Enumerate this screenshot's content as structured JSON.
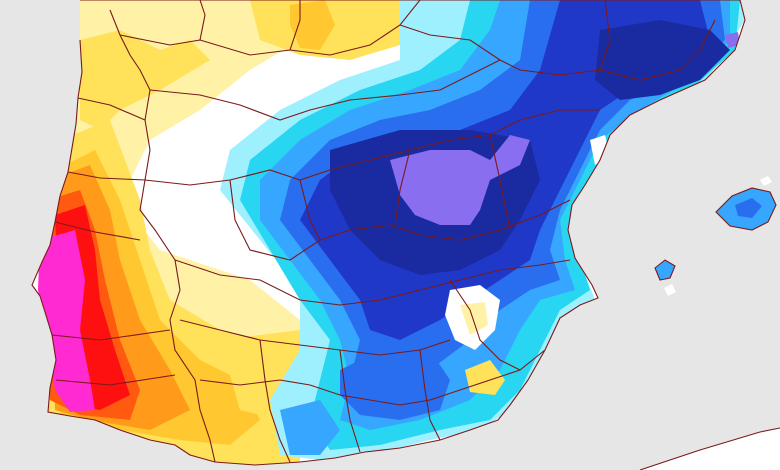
{
  "map": {
    "type": "temperature-anomaly-field",
    "region": "",
    "colors": {
      "sea": "#e6e6e6",
      "land_neutral": "#ffffff",
      "yellow_light": "#fff2a6",
      "yellow": "#ffe25a",
      "yellow_orange": "#ffc830",
      "orange": "#ff9a1a",
      "orange_red": "#ff5a10",
      "red": "#ff1010",
      "magenta": "#ff2ad2",
      "cyan_light": "#9ef0ff",
      "cyan": "#28d6f2",
      "sky_blue": "#36a6ff",
      "blue": "#2a6ef0",
      "dark_blue": "#2038c8",
      "navy": "#1a2aa0",
      "lavender": "#8a6ef0",
      "border": "#7a1a1a"
    }
  }
}
